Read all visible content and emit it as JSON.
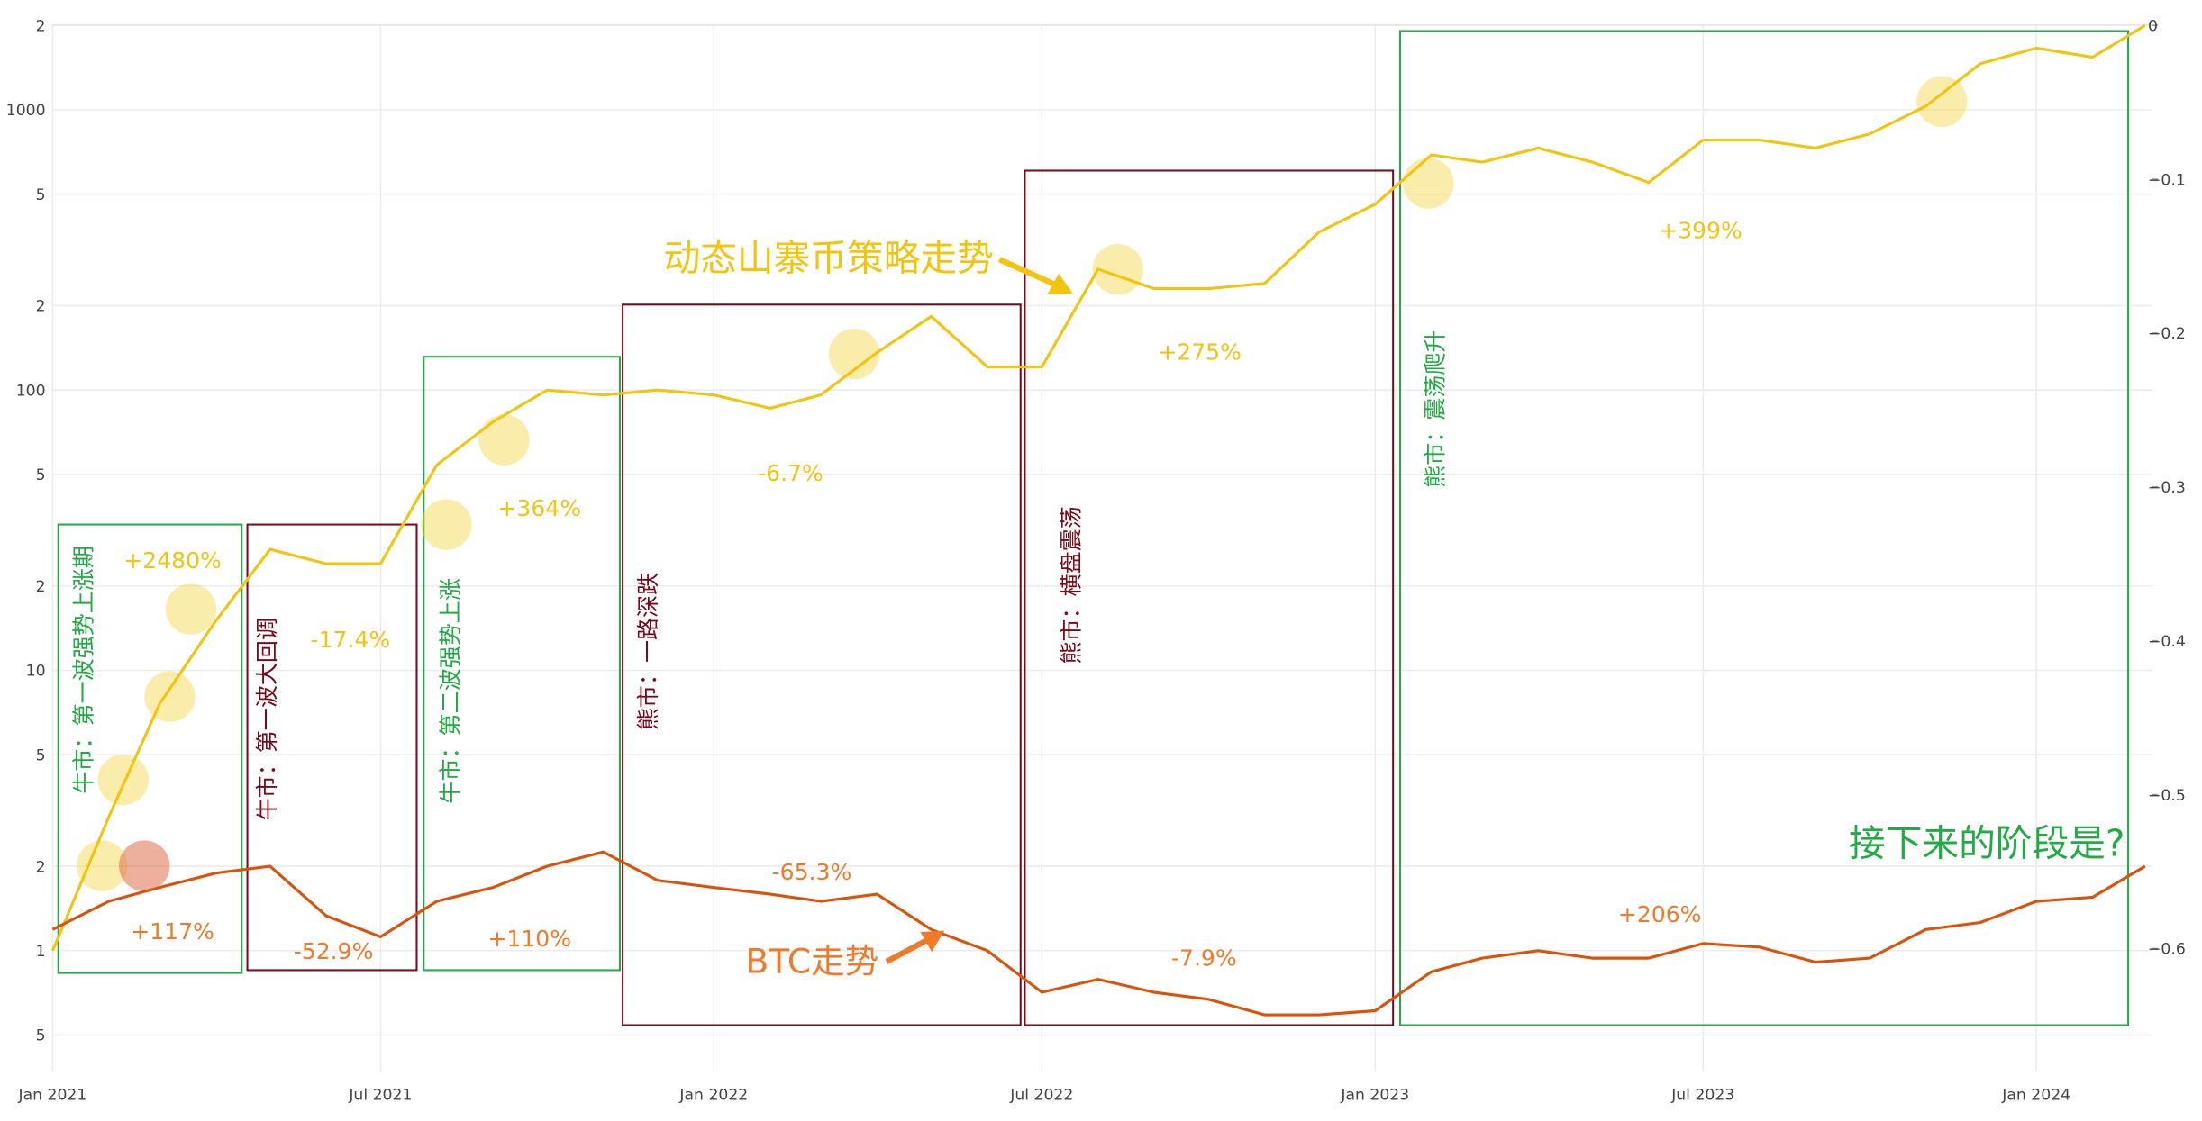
{
  "chart_data": {
    "type": "line",
    "log_y": true,
    "grid": true,
    "x": [
      "2021-01",
      "2021-02",
      "2021-03",
      "2021-04",
      "2021-05",
      "2021-06",
      "2021-07",
      "2021-08",
      "2021-09",
      "2021-10",
      "2021-11",
      "2021-12",
      "2022-01",
      "2022-02",
      "2022-03",
      "2022-04",
      "2022-05",
      "2022-06",
      "2022-07",
      "2022-08",
      "2022-09",
      "2022-10",
      "2022-11",
      "2022-12",
      "2023-01",
      "2023-02",
      "2023-03",
      "2023-04",
      "2023-05",
      "2023-06",
      "2023-07",
      "2023-08",
      "2023-09",
      "2023-10",
      "2023-11",
      "2023-12",
      "2024-01",
      "2024-02",
      "2024-03"
    ],
    "xlim": [
      "2021-01",
      "2024-03"
    ],
    "xticks": [
      {
        "value": "2021-01",
        "label": "Jan 2021"
      },
      {
        "value": "2021-07",
        "label": "Jul 2021"
      },
      {
        "value": "2022-01",
        "label": "Jan 2022"
      },
      {
        "value": "2022-07",
        "label": "Jul 2022"
      },
      {
        "value": "2023-01",
        "label": "Jan 2023"
      },
      {
        "value": "2023-07",
        "label": "Jul 2023"
      },
      {
        "value": "2024-01",
        "label": "Jan 2024"
      }
    ],
    "ylim": [
      0.37,
      2000
    ],
    "yticks": [
      {
        "value": 2000,
        "label": "2"
      },
      1000,
      {
        "value": 500,
        "label": "5"
      },
      {
        "value": 200,
        "label": "2"
      },
      100,
      {
        "value": 50,
        "label": "5"
      },
      {
        "value": 20,
        "label": "2"
      },
      10,
      5,
      2,
      1,
      {
        "value": 0.5,
        "label": "5"
      }
    ],
    "y2lim": [
      -0.68,
      0
    ],
    "y2ticks": [
      0,
      {
        "value": -0.1,
        "label": "−0.1"
      },
      {
        "value": -0.2,
        "label": "−0.2"
      },
      {
        "value": -0.3,
        "label": "−0.3"
      },
      {
        "value": -0.4,
        "label": "−0.4"
      },
      {
        "value": -0.5,
        "label": "−0.5"
      },
      {
        "value": -0.6,
        "label": "−0.6"
      }
    ],
    "series": [
      {
        "name": "动态山寨币策略走势",
        "color": "#f2c40f",
        "values": [
          1,
          3,
          7.6,
          15,
          27,
          24,
          24,
          54,
          77,
          100,
          96,
          100,
          96,
          86,
          96,
          136,
          183,
          121,
          121,
          270,
          230,
          230,
          240,
          366,
          460,
          690,
          650,
          730,
          650,
          550,
          780,
          780,
          730,
          820,
          1030,
          1460,
          1660,
          1540,
          2000
        ]
      },
      {
        "name": "BTC走势",
        "color": "#d9530a",
        "values": [
          1.19,
          1.5,
          1.68,
          1.89,
          2,
          1.33,
          1.12,
          1.5,
          1.68,
          2,
          2.25,
          1.78,
          1.68,
          1.59,
          1.5,
          1.59,
          1.19,
          1,
          0.71,
          0.79,
          0.71,
          0.67,
          0.59,
          0.59,
          0.61,
          0.84,
          0.94,
          1,
          0.94,
          0.94,
          1.06,
          1.03,
          0.91,
          0.94,
          1.19,
          1.26,
          1.5,
          1.55,
          2
        ]
      }
    ],
    "phases": [
      {
        "label": "牛市：第一波强势上涨期",
        "color": "#22aa44",
        "alt_change": "+2480%",
        "btc_change": "+117%"
      },
      {
        "label": "牛市：第一波大回调",
        "color": "#7a0a1a",
        "alt_change": "-17.4%",
        "btc_change": "-52.9%"
      },
      {
        "label": "牛市：第二波强势上涨",
        "color": "#22aa44",
        "alt_change": "+364%",
        "btc_change": "+110%"
      },
      {
        "label": "熊市：一路深跌",
        "color": "#7a0a1a",
        "alt_change": "-6.7%",
        "btc_change": "-65.3%"
      },
      {
        "label": "熊市：横盘震荡",
        "color": "#7a0a1a",
        "alt_change": "+275%",
        "btc_change": "-7.9%"
      },
      {
        "label": "熊市：震荡爬升",
        "color": "#22aa44",
        "alt_change": "+399%",
        "btc_change": "+206%"
      }
    ],
    "question": "接下来的阶段是?"
  }
}
